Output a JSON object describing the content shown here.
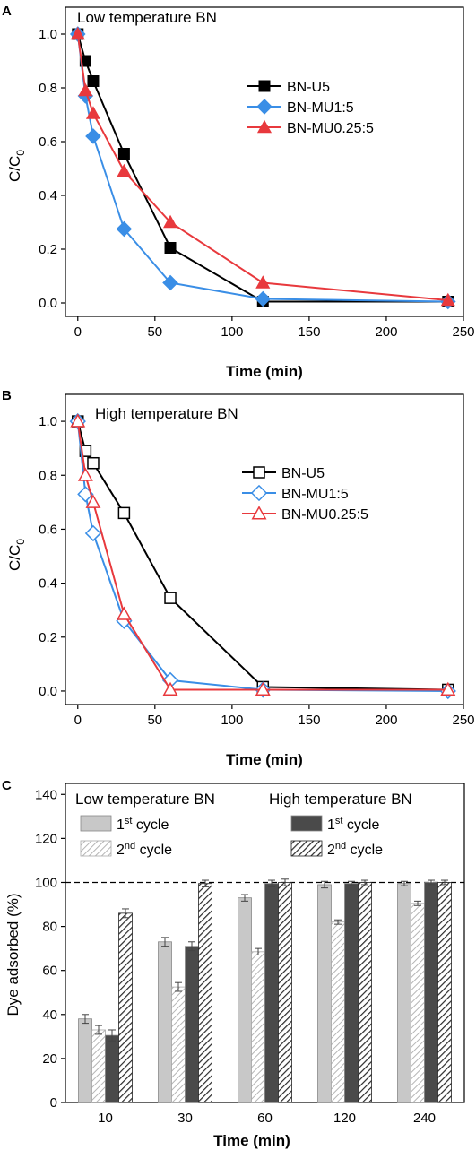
{
  "chart_data": [
    {
      "panel": "A",
      "type": "line",
      "annotation": "Low temperature BN",
      "xlabel": "Time (min)",
      "ylabel": "C/C",
      "ylabel_sub": "0",
      "xlim": [
        -8,
        250
      ],
      "ylim": [
        -0.05,
        1.1
      ],
      "xticks": [
        0,
        50,
        100,
        150,
        200,
        250
      ],
      "yticks": [
        0.0,
        0.2,
        0.4,
        0.6,
        0.8,
        1.0
      ],
      "ytick_labels": [
        "0.0",
        "0.2",
        "0.4",
        "0.6",
        "0.8",
        "1.0"
      ],
      "legend_position": "upper-right",
      "series": [
        {
          "name": "BN-U5",
          "color": "#000000",
          "marker": "square",
          "filled": true,
          "x": [
            0,
            5,
            10,
            30,
            60,
            120,
            240
          ],
          "y": [
            1.0,
            0.9,
            0.825,
            0.555,
            0.205,
            0.005,
            0.005
          ]
        },
        {
          "name": "BN-MU1:5",
          "color": "#3a8ee6",
          "marker": "diamond",
          "filled": true,
          "x": [
            0,
            5,
            10,
            30,
            60,
            120,
            240
          ],
          "y": [
            1.0,
            0.77,
            0.62,
            0.275,
            0.075,
            0.015,
            0.005
          ]
        },
        {
          "name": "BN-MU0.25:5",
          "color": "#e8393d",
          "marker": "triangle",
          "filled": true,
          "x": [
            0,
            5,
            10,
            30,
            60,
            120,
            240
          ],
          "y": [
            1.0,
            0.79,
            0.705,
            0.49,
            0.3,
            0.075,
            0.01
          ]
        }
      ]
    },
    {
      "panel": "B",
      "type": "line",
      "annotation": "High temperature BN",
      "xlabel": "Time (min)",
      "ylabel": "C/C",
      "ylabel_sub": "0",
      "xlim": [
        -8,
        250
      ],
      "ylim": [
        -0.05,
        1.1
      ],
      "xticks": [
        0,
        50,
        100,
        150,
        200,
        250
      ],
      "yticks": [
        0.0,
        0.2,
        0.4,
        0.6,
        0.8,
        1.0
      ],
      "ytick_labels": [
        "0.0",
        "0.2",
        "0.4",
        "0.6",
        "0.8",
        "1.0"
      ],
      "legend_position": "center-right",
      "series": [
        {
          "name": "BN-U5",
          "color": "#000000",
          "marker": "square",
          "filled": false,
          "x": [
            0,
            5,
            10,
            30,
            60,
            120,
            240
          ],
          "y": [
            1.0,
            0.89,
            0.845,
            0.66,
            0.345,
            0.015,
            0.005
          ]
        },
        {
          "name": "BN-MU1:5",
          "color": "#3a8ee6",
          "marker": "diamond",
          "filled": false,
          "x": [
            0,
            5,
            10,
            30,
            60,
            120,
            240
          ],
          "y": [
            1.0,
            0.73,
            0.585,
            0.26,
            0.04,
            0.005,
            0.0
          ]
        },
        {
          "name": "BN-MU0.25:5",
          "color": "#e8393d",
          "marker": "triangle",
          "filled": false,
          "x": [
            0,
            5,
            10,
            30,
            60,
            120,
            240
          ],
          "y": [
            1.0,
            0.8,
            0.7,
            0.285,
            0.005,
            0.005,
            0.005
          ]
        }
      ]
    },
    {
      "panel": "C",
      "type": "bar",
      "xlabel": "Time (min)",
      "ylabel": "Dye adsorbed (%)",
      "categories": [
        "10",
        "30",
        "60",
        "120",
        "240"
      ],
      "ylim": [
        0,
        145
      ],
      "yticks": [
        0,
        20,
        40,
        60,
        80,
        100,
        120,
        140
      ],
      "reference_line": 100,
      "group_labels": [
        "Low temperature BN",
        "High temperature BN"
      ],
      "series": [
        {
          "group": "Low temperature BN",
          "label": "1",
          "sup": "st",
          "rest": " cycle",
          "fill": "#c8c8c8",
          "hatched": false,
          "values": [
            38,
            73,
            93,
            99,
            99.5
          ],
          "errors": [
            2,
            2,
            1.5,
            1.5,
            1
          ]
        },
        {
          "group": "Low temperature BN",
          "label": "2",
          "sup": "nd",
          "rest": " cycle",
          "fill": "#ffffff",
          "hatched": true,
          "hatch_color": "#bdbdbd",
          "values": [
            33,
            52.5,
            68.5,
            82,
            90.5
          ],
          "errors": [
            2,
            2,
            1.5,
            1,
            1
          ]
        },
        {
          "group": "High temperature BN",
          "label": "1",
          "sup": "st",
          "rest": " cycle",
          "fill": "#4a4a4a",
          "hatched": false,
          "values": [
            30.5,
            71,
            99.5,
            99.5,
            100
          ],
          "errors": [
            2.5,
            2,
            1.5,
            1,
            1
          ]
        },
        {
          "group": "High temperature BN",
          "label": "2",
          "sup": "nd",
          "rest": " cycle",
          "fill": "#ffffff",
          "hatched": true,
          "hatch_color": "#333333",
          "values": [
            86,
            99.5,
            100,
            100,
            100
          ],
          "errors": [
            2,
            1.5,
            1.5,
            1,
            1
          ]
        }
      ]
    }
  ]
}
